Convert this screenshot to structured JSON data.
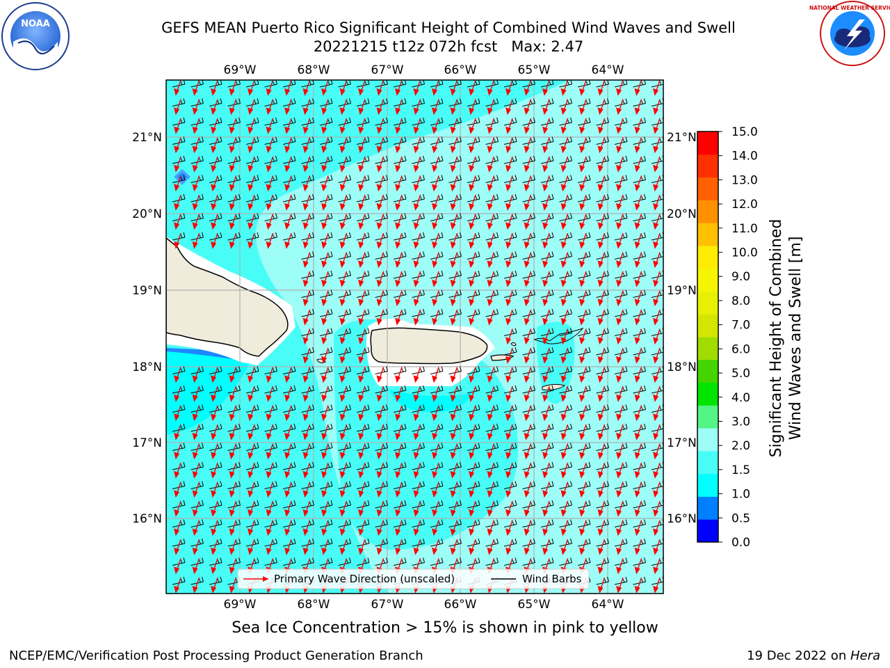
{
  "header": {
    "title": "GEFS MEAN Puerto Rico Significant Height of Combined Wind Waves and Swell",
    "subtitle": "20221215 t12z 072h fcst",
    "max_label": "Max: 2.47"
  },
  "logos": {
    "noaa_text": "NOAA",
    "nws_text": "NATIONAL WEATHER SERVICE"
  },
  "map": {
    "lon_ticks": [
      "69°W",
      "68°W",
      "67°W",
      "66°W",
      "65°W",
      "64°W"
    ],
    "lat_ticks": [
      "21°N",
      "20°N",
      "19°N",
      "18°N",
      "17°N",
      "16°N"
    ],
    "ocean_color_low": "#00ffff",
    "ocean_color_mid": "#49fdf7",
    "ocean_color_high": "#9dfdf7",
    "land_color": "#efecdc",
    "wave_arrow_color": "#ff0000",
    "barb_color": "#000000"
  },
  "legend": {
    "wave_label": "Primary Wave Direction (unscaled)",
    "barb_label": "Wind Barbs"
  },
  "colorbar": {
    "label_line1": "Significant Height of Combined",
    "label_line2": "Wind Waves and Swell [m]",
    "ticks": [
      "15.0",
      "14.0",
      "13.0",
      "12.0",
      "11.0",
      "10.0",
      "9.0",
      "8.0",
      "7.0",
      "6.0",
      "5.0",
      "4.0",
      "3.0",
      "2.0",
      "1.5",
      "1.0",
      "0.5",
      "0.0"
    ],
    "colors": [
      "#0000ff",
      "#0080ff",
      "#00ffff",
      "#49fdf7",
      "#9dfdf7",
      "#54f584",
      "#00e400",
      "#44d400",
      "#a0dc00",
      "#d4e600",
      "#e6f000",
      "#f5f500",
      "#ffec00",
      "#ffc000",
      "#ff9000",
      "#ff6000",
      "#ff3000",
      "#ff0000"
    ]
  },
  "note": "Sea Ice Concentration > 15% is shown in pink to yellow",
  "footer": {
    "left": "NCEP/EMC/Verification Post Processing Product Generation Branch",
    "right_prefix": "19 Dec 2022 on ",
    "right_host": "Hera"
  }
}
